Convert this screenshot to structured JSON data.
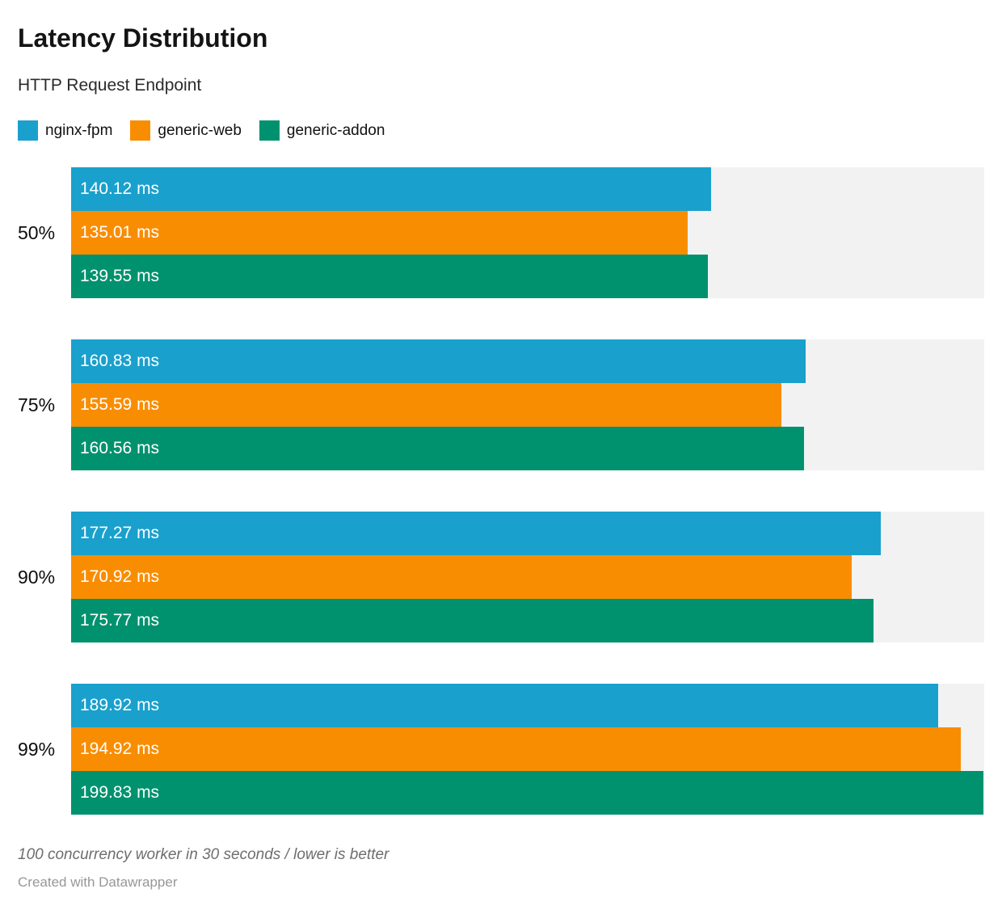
{
  "header": {
    "title": "Latency Distribution",
    "subtitle": "HTTP Request Endpoint"
  },
  "chart_data": {
    "type": "bar",
    "orientation": "horizontal",
    "title": "Latency Distribution",
    "subtitle": "HTTP Request Endpoint",
    "unit": "ms",
    "xlim": [
      0,
      200
    ],
    "grid": false,
    "legend_position": "top",
    "track_color": "#f2f2f2",
    "value_label_color": "#ffffff",
    "categories": [
      "50%",
      "75%",
      "90%",
      "99%"
    ],
    "series": [
      {
        "name": "nginx-fpm",
        "color": "#1aa0cd",
        "values": [
          140.12,
          160.83,
          177.27,
          189.92
        ],
        "labels": [
          "140.12 ms",
          "160.83 ms",
          "177.27 ms",
          "189.92 ms"
        ]
      },
      {
        "name": "generic-web",
        "color": "#f98d02",
        "values": [
          135.01,
          155.59,
          170.92,
          194.92
        ],
        "labels": [
          "135.01 ms",
          "155.59 ms",
          "170.92 ms",
          "194.92 ms"
        ]
      },
      {
        "name": "generic-addon",
        "color": "#00926e",
        "values": [
          139.55,
          160.56,
          175.77,
          199.83
        ],
        "labels": [
          "139.55 ms",
          "160.56 ms",
          "175.77 ms",
          "199.83 ms"
        ]
      }
    ]
  },
  "footer": {
    "note": "100 concurrency worker in 30 seconds / lower is better",
    "credit": "Created with Datawrapper"
  }
}
